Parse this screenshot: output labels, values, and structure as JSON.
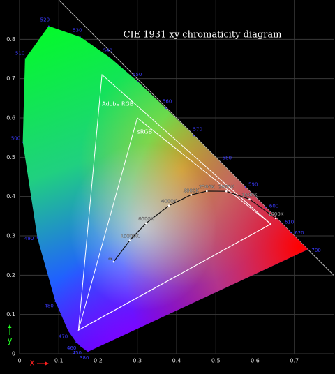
{
  "chart_data": {
    "type": "line",
    "title": "CIE 1931 xy chromaticity diagram",
    "xlabel": "x",
    "ylabel": "y",
    "xlim": [
      0,
      0.8
    ],
    "ylim": [
      0,
      0.9
    ],
    "xticks": [
      0,
      0.1,
      0.2,
      0.3,
      0.4,
      0.5,
      0.6,
      0.7
    ],
    "yticks": [
      0,
      0.1,
      0.2,
      0.3,
      0.4,
      0.5,
      0.6,
      0.7,
      0.8
    ],
    "grid": true,
    "locus": {
      "color": "#3a3aff",
      "labels": [
        380,
        450,
        460,
        470,
        480,
        490,
        500,
        510,
        520,
        530,
        540,
        550,
        560,
        570,
        580,
        590,
        600,
        610,
        620,
        700
      ],
      "x": [
        0.1741,
        0.1566,
        0.144,
        0.1241,
        0.0913,
        0.0454,
        0.0082,
        0.0139,
        0.0743,
        0.1547,
        0.2296,
        0.3016,
        0.3731,
        0.4441,
        0.5125,
        0.5752,
        0.627,
        0.6658,
        0.6915,
        0.7347
      ],
      "y": [
        0.005,
        0.0177,
        0.0297,
        0.0578,
        0.1327,
        0.295,
        0.5384,
        0.7502,
        0.8338,
        0.8059,
        0.7543,
        0.6923,
        0.6245,
        0.5547,
        0.4866,
        0.4242,
        0.3725,
        0.334,
        0.3083,
        0.2653
      ]
    },
    "series": [
      {
        "name": "Adobe RGB",
        "color": "#ffffff",
        "x": [
          0.64,
          0.21,
          0.15
        ],
        "y": [
          0.33,
          0.71,
          0.06
        ]
      },
      {
        "name": "sRGB",
        "color": "#ffffff",
        "x": [
          0.64,
          0.3,
          0.15
        ],
        "y": [
          0.33,
          0.6,
          0.06
        ]
      }
    ],
    "planckian": {
      "color": "#111111",
      "labels": [
        "1000K",
        "1500K",
        "2000K",
        "2500K",
        "3000K",
        "4000K",
        "6000K",
        "10000K",
        "∞"
      ],
      "x": [
        0.6528,
        0.5857,
        0.5267,
        0.477,
        0.4369,
        0.3805,
        0.3221,
        0.2807,
        0.2399
      ],
      "y": [
        0.3444,
        0.3931,
        0.4133,
        0.4137,
        0.4041,
        0.3768,
        0.3318,
        0.2883,
        0.2342
      ]
    }
  }
}
